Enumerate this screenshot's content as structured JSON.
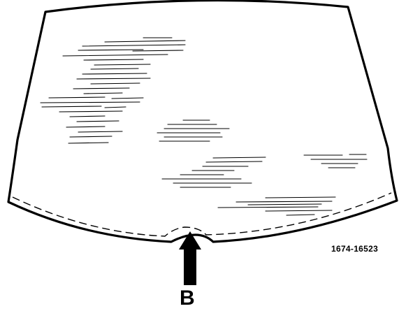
{
  "figure": {
    "callout_letter": "B",
    "reference_number": "1674-16523",
    "line_color": "#000000",
    "background": "#ffffff"
  }
}
